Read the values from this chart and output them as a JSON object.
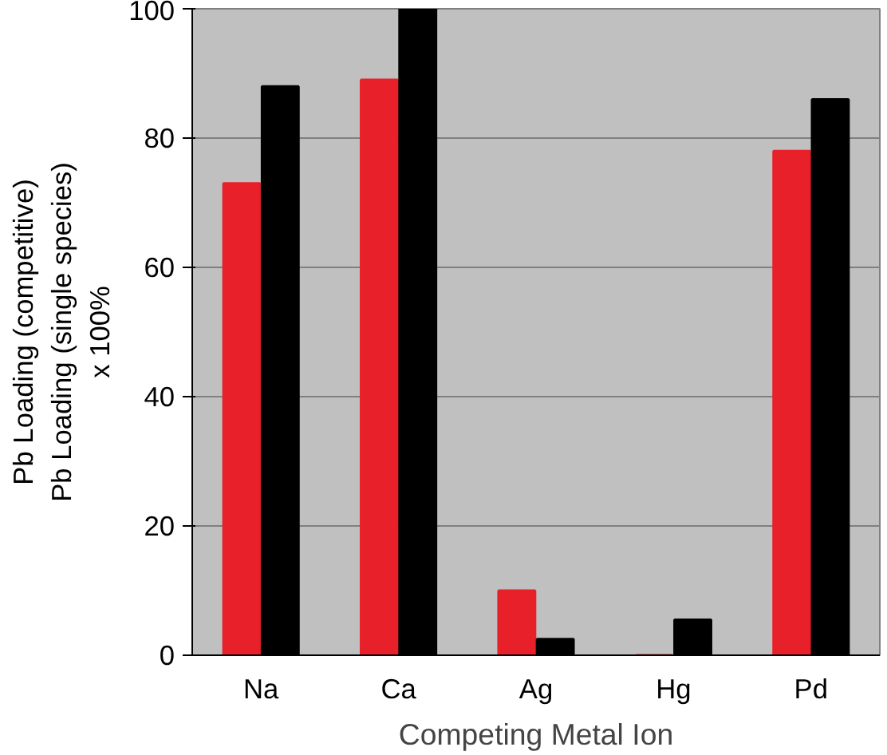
{
  "chart_data": {
    "type": "bar",
    "xlabel": "Competing Metal Ion",
    "ylabel": "Pb Loading (competitive)\nPb Loading (single species)\nx 100%",
    "categories": [
      "Na",
      "Ca",
      "Ag",
      "Hg",
      "Pd"
    ],
    "series": [
      {
        "color": "#e8202a",
        "values": [
          73,
          89,
          10,
          0,
          78
        ]
      },
      {
        "color": "#000000",
        "values": [
          88,
          100,
          2.5,
          5.5,
          86
        ]
      }
    ],
    "ylim": [
      0,
      100
    ],
    "yticks": [
      0,
      20,
      40,
      60,
      80,
      100
    ],
    "grid": "y"
  }
}
